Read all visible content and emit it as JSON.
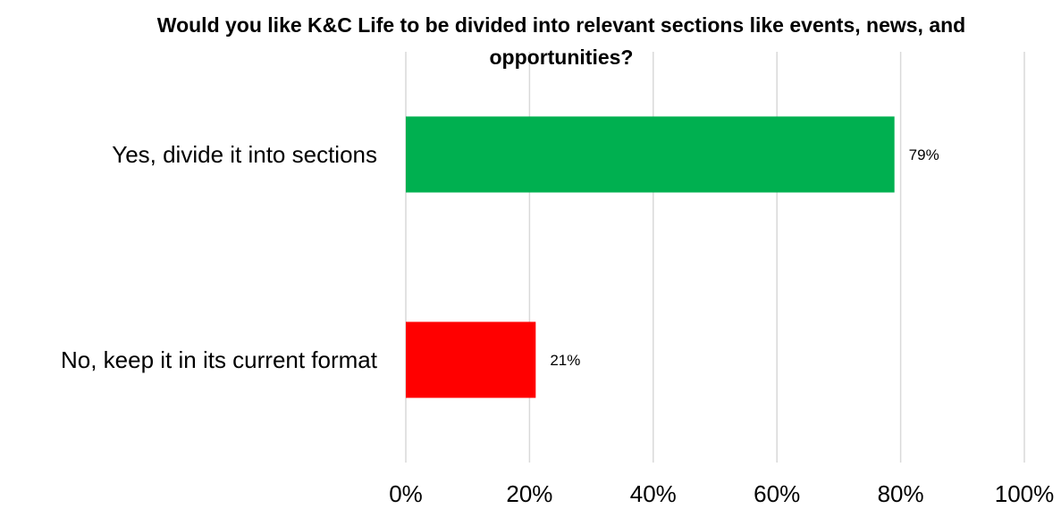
{
  "chart_data": {
    "type": "bar",
    "orientation": "horizontal",
    "title": "Would you like K&C Life to be divided into relevant sections like events, news, and opportunities?",
    "title_lines": [
      "Would you like K&C Life to be divided into relevant sections like events, news, and",
      "opportunities?"
    ],
    "categories": [
      "Yes, divide it into sections",
      "No, keep it in its current format"
    ],
    "values": [
      79,
      21
    ],
    "data_labels": [
      "79%",
      "21%"
    ],
    "colors": [
      "#00b050",
      "#ff0000"
    ],
    "xlim": [
      0,
      100
    ],
    "x_ticks": [
      0,
      20,
      40,
      60,
      80,
      100
    ],
    "x_tick_labels": [
      "0%",
      "20%",
      "40%",
      "60%",
      "80%",
      "100%"
    ],
    "grid": "vertical",
    "legend": "none"
  }
}
